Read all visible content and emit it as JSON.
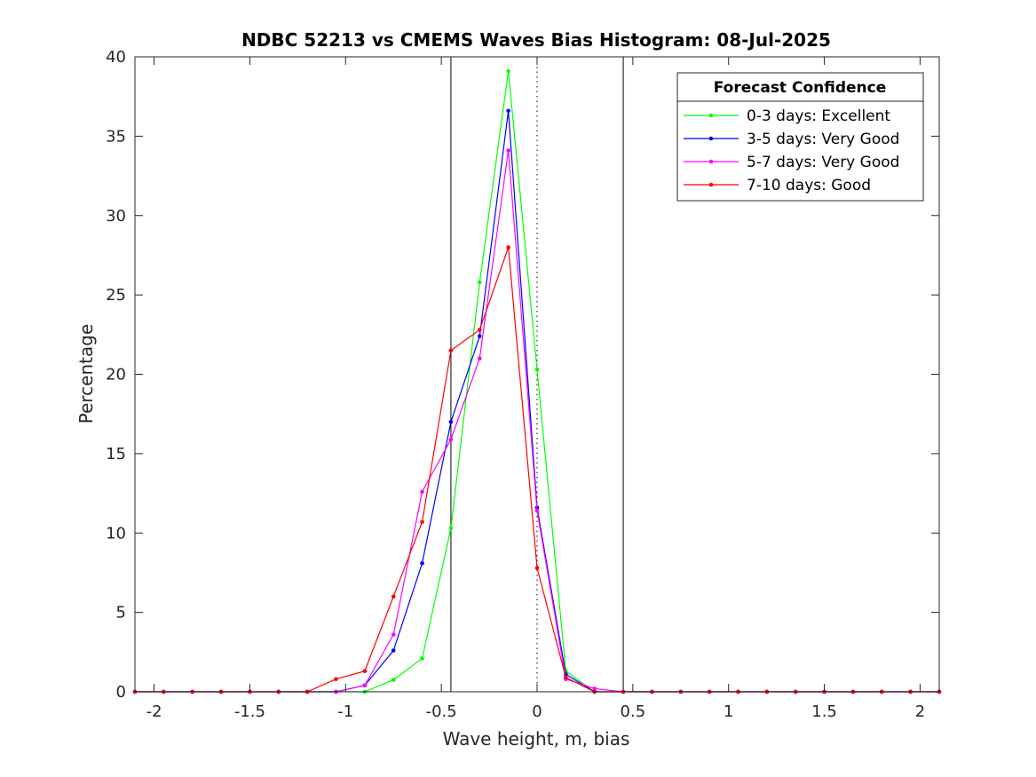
{
  "chart_data": {
    "type": "line",
    "title": "NDBC 52213 vs CMEMS Waves Bias Histogram: 08-Jul-2025",
    "xlabel": "Wave height, m, bias",
    "ylabel": "Percentage",
    "xlim": [
      -2.1,
      2.1
    ],
    "ylim": [
      0,
      40
    ],
    "xticks": [
      -2,
      -1.5,
      -1,
      -0.5,
      0,
      0.5,
      1,
      1.5,
      2
    ],
    "xtick_labels": [
      "-2",
      "-1.5",
      "-1",
      "-0.5",
      "0",
      "0.5",
      "1",
      "1.5",
      "2"
    ],
    "yticks": [
      0,
      5,
      10,
      15,
      20,
      25,
      30,
      35,
      40
    ],
    "ytick_labels": [
      "0",
      "5",
      "10",
      "15",
      "20",
      "25",
      "30",
      "35",
      "40"
    ],
    "grid": false,
    "vertical_lines": [
      {
        "x": -0.45,
        "style": "solid"
      },
      {
        "x": 0.45,
        "style": "solid"
      },
      {
        "x": 0,
        "style": "dotted"
      }
    ],
    "legend": {
      "title": "Forecast Confidence",
      "placement": "top-right"
    },
    "x": [
      -2.1,
      -1.95,
      -1.8,
      -1.65,
      -1.5,
      -1.35,
      -1.2,
      -1.05,
      -0.9,
      -0.75,
      -0.6,
      -0.45,
      -0.3,
      -0.15,
      0,
      0.15,
      0.3,
      0.45,
      0.6,
      0.75,
      0.9,
      1.05,
      1.2,
      1.35,
      1.5,
      1.65,
      1.8,
      1.95,
      2.1
    ],
    "series": [
      {
        "name": "0-3 days: Excellent",
        "color": "#00ff00",
        "values": [
          0,
          0,
          0,
          0,
          0,
          0,
          0,
          0,
          0,
          0.75,
          2.1,
          10.3,
          25.8,
          39.1,
          20.3,
          1.3,
          0,
          0,
          0,
          0,
          0,
          0,
          0,
          0,
          0,
          0,
          0,
          0,
          0
        ]
      },
      {
        "name": "3-5 days: Very Good",
        "color": "#0000ff",
        "values": [
          0,
          0,
          0,
          0,
          0,
          0,
          0,
          0,
          0.4,
          2.6,
          8.1,
          17.0,
          22.4,
          36.6,
          11.6,
          1.1,
          0,
          0,
          0,
          0,
          0,
          0,
          0,
          0,
          0,
          0,
          0,
          0,
          0
        ]
      },
      {
        "name": "5-7 days: Very Good",
        "color": "#ff00ff",
        "values": [
          0,
          0,
          0,
          0,
          0,
          0,
          0,
          0,
          0.4,
          3.6,
          12.6,
          15.9,
          21.0,
          34.1,
          11.4,
          0.8,
          0.2,
          0,
          0,
          0,
          0,
          0,
          0,
          0,
          0,
          0,
          0,
          0,
          0
        ]
      },
      {
        "name": "7-10 days: Good",
        "color": "#ff0000",
        "values": [
          0,
          0,
          0,
          0,
          0,
          0,
          0,
          0.8,
          1.3,
          6.0,
          10.7,
          21.5,
          22.8,
          28.0,
          7.8,
          0.9,
          0,
          0,
          0,
          0,
          0,
          0,
          0,
          0,
          0,
          0,
          0,
          0,
          0
        ]
      }
    ]
  }
}
